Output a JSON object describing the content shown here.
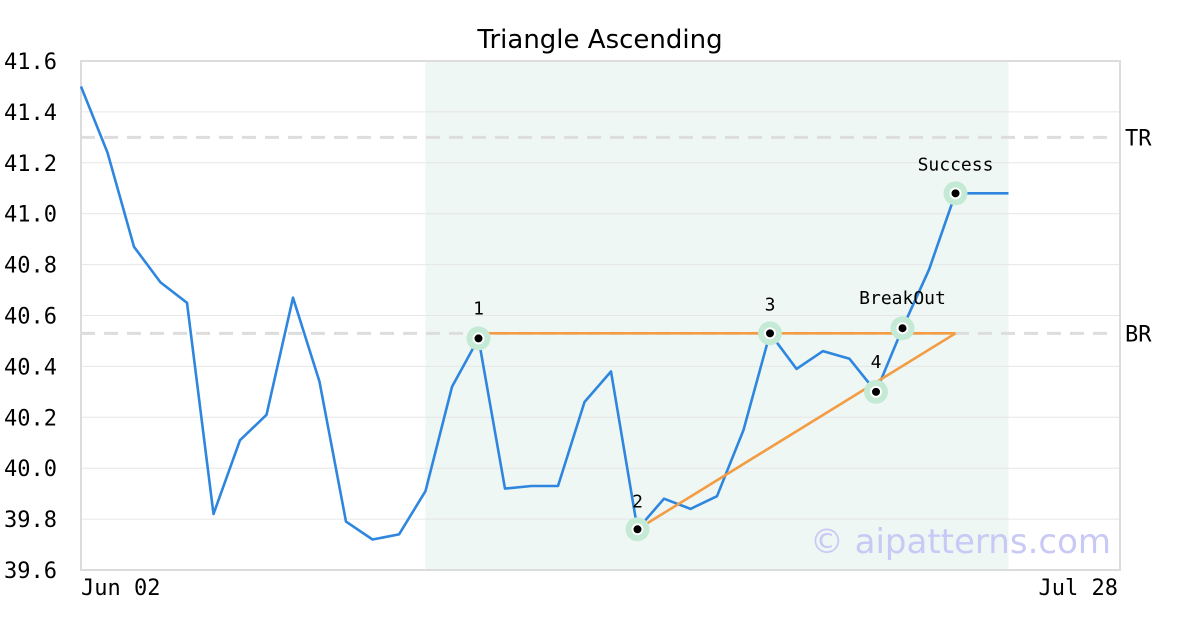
{
  "colors": {
    "price_line": "#2e86de",
    "pattern_line": "#f39c44",
    "highlight_band": "#eef7f3",
    "marker_halo": "#c4ead5",
    "grid": "#e6e6e6",
    "level_dash": "#dddddd",
    "frame": "#dcdcdc",
    "watermark": "#c9c9f5"
  },
  "watermark": "© aipatterns.com",
  "chart_data": {
    "type": "line",
    "title": "Triangle Ascending",
    "xlabel": "",
    "ylabel": "",
    "ylim": [
      39.6,
      41.6
    ],
    "y_ticks": [
      "39.6",
      "39.8",
      "40.0",
      "40.2",
      "40.4",
      "40.6",
      "40.8",
      "41.0",
      "41.2",
      "41.4",
      "41.6"
    ],
    "x_tick_labels": [
      "Jun 02",
      "Jul 28"
    ],
    "grid": true,
    "series": [
      {
        "values": [
          41.5,
          41.24,
          40.87,
          40.73,
          40.65,
          39.82,
          40.11,
          40.21,
          40.67,
          40.34,
          39.79,
          39.72,
          39.74,
          39.91,
          40.32,
          40.51,
          39.92,
          39.93,
          39.93,
          40.26,
          40.38,
          39.76,
          39.88,
          39.84,
          39.89,
          40.15,
          40.53,
          40.39,
          40.46,
          40.43,
          40.3,
          40.55,
          40.78,
          41.08,
          41.08,
          41.08
        ]
      }
    ],
    "highlight_range": {
      "start_index": 13,
      "end_index": 35
    },
    "levels": [
      {
        "label": "TR",
        "value": 41.3
      },
      {
        "label": "BR",
        "value": 40.53
      }
    ],
    "pattern_lines": [
      {
        "from": {
          "index": 15,
          "value": 40.53
        },
        "to": {
          "index": 33,
          "value": 40.53
        }
      },
      {
        "from": {
          "index": 21,
          "value": 39.76
        },
        "to": {
          "index": 33,
          "value": 40.53
        }
      }
    ],
    "points": [
      {
        "label": "1",
        "index": 15,
        "value": 40.51
      },
      {
        "label": "2",
        "index": 21,
        "value": 39.76
      },
      {
        "label": "3",
        "index": 26,
        "value": 40.53
      },
      {
        "label": "4",
        "index": 30,
        "value": 40.3
      },
      {
        "label": "BreakOut",
        "index": 31,
        "value": 40.55
      },
      {
        "label": "Success",
        "index": 33,
        "value": 41.08
      }
    ]
  }
}
